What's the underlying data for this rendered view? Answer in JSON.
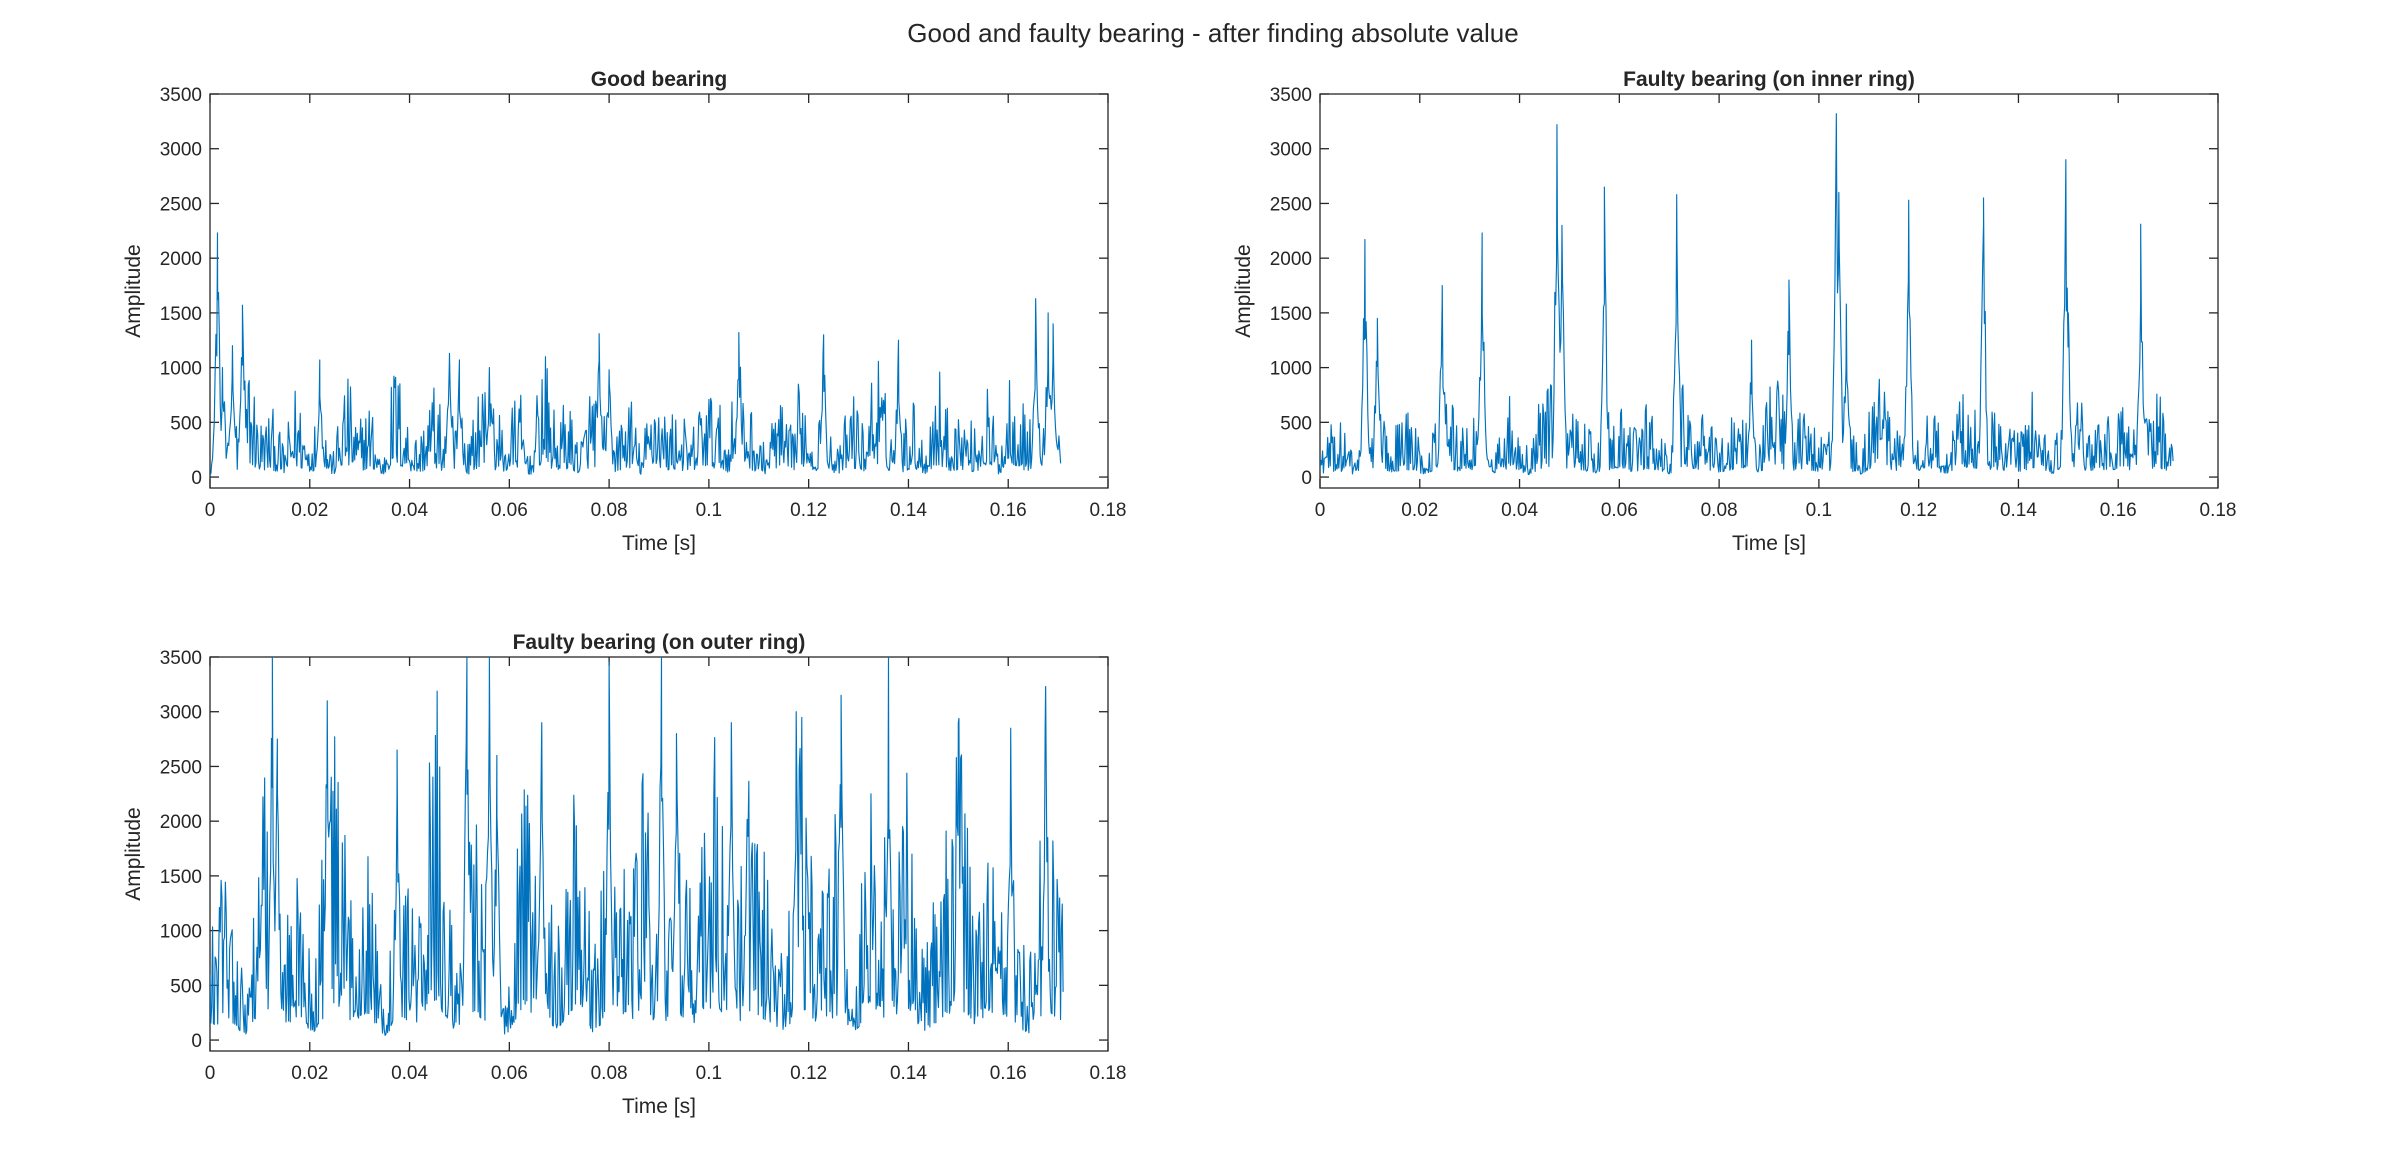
{
  "figure": {
    "title": "Good and faulty bearing - after finding absolute value"
  },
  "colors": {
    "series": "#0072BD",
    "axes": "#262626",
    "background": "#ffffff"
  },
  "chart_data": [
    {
      "type": "line",
      "title": "Good bearing",
      "xlabel": "Time [s]",
      "ylabel": "Amplitude",
      "xlim": [
        0,
        0.18
      ],
      "ylim": [
        -100,
        3500
      ],
      "xticks": [
        0,
        0.02,
        0.04,
        0.06,
        0.08,
        0.1,
        0.12,
        0.14,
        0.16,
        0.18
      ],
      "xtick_labels": [
        "0",
        "0.02",
        "0.04",
        "0.06",
        "0.08",
        "0.1",
        "0.12",
        "0.14",
        "0.16",
        "0.18"
      ],
      "yticks": [
        0,
        500,
        1000,
        1500,
        2000,
        2500,
        3000,
        3500
      ],
      "ytick_labels": [
        "0",
        "500",
        "1000",
        "1500",
        "2000",
        "2500",
        "3000",
        "3500"
      ],
      "grid": false,
      "series": [
        {
          "x_range": [
            0,
            0.1705
          ],
          "peaks": [
            [
              0.0015,
              2230
            ],
            [
              0.0025,
              1000
            ],
            [
              0.0045,
              1200
            ],
            [
              0.0065,
              1570
            ],
            [
              0.022,
              1070
            ],
            [
              0.048,
              1130
            ],
            [
              0.05,
              1070
            ],
            [
              0.056,
              1000
            ],
            [
              0.078,
              1310
            ],
            [
              0.08,
              980
            ],
            [
              0.106,
              1320
            ],
            [
              0.123,
              1300
            ],
            [
              0.138,
              1250
            ],
            [
              0.1655,
              1630
            ],
            [
              0.168,
              1500
            ],
            [
              0.169,
              1400
            ]
          ],
          "values": [
            170,
            540,
            260,
            920,
            380,
            440,
            200,
            620,
            300,
            480,
            150,
            700,
            350,
            520,
            90,
            810,
            410,
            250,
            660,
            330,
            560,
            180,
            730,
            460,
            290,
            610,
            120,
            850,
            370,
            500,
            220,
            680,
            430,
            310,
            590,
            140,
            770,
            390,
            470,
            240,
            640,
            520,
            300,
            820,
            410,
            190,
            560,
            280,
            700,
            360,
            480,
            150,
            610,
            330,
            880,
            420,
            260,
            540,
            200,
            750,
            380,
            470,
            310,
            620,
            170,
            830,
            450,
            290,
            580,
            360
          ]
        }
      ]
    },
    {
      "type": "line",
      "title": "Faulty bearing (on inner ring)",
      "xlabel": "Time [s]",
      "ylabel": "Amplitude",
      "xlim": [
        0,
        0.18
      ],
      "ylim": [
        -100,
        3500
      ],
      "xticks": [
        0,
        0.02,
        0.04,
        0.06,
        0.08,
        0.1,
        0.12,
        0.14,
        0.16,
        0.18
      ],
      "xtick_labels": [
        "0",
        "0.02",
        "0.04",
        "0.06",
        "0.08",
        "0.1",
        "0.12",
        "0.14",
        "0.16",
        "0.18"
      ],
      "yticks": [
        0,
        500,
        1000,
        1500,
        2000,
        2500,
        3000,
        3500
      ],
      "ytick_labels": [
        "0",
        "500",
        "1000",
        "1500",
        "2000",
        "2500",
        "3000",
        "3500"
      ],
      "grid": false,
      "series": [
        {
          "x_range": [
            0,
            0.171
          ],
          "peaks": [
            [
              0.009,
              2170
            ],
            [
              0.0115,
              1450
            ],
            [
              0.0245,
              1750
            ],
            [
              0.0325,
              2230
            ],
            [
              0.0475,
              3220
            ],
            [
              0.0485,
              2300
            ],
            [
              0.057,
              2650
            ],
            [
              0.0715,
              2580
            ],
            [
              0.0865,
              1250
            ],
            [
              0.094,
              1800
            ],
            [
              0.1035,
              3320
            ],
            [
              0.104,
              2600
            ],
            [
              0.1055,
              1580
            ],
            [
              0.118,
              2530
            ],
            [
              0.133,
              2550
            ],
            [
              0.1495,
              2900
            ],
            [
              0.15,
              1500
            ],
            [
              0.1645,
              2310
            ]
          ],
          "values": [
            210,
            380,
            150,
            520,
            290,
            440,
            180,
            610,
            330,
            470,
            250,
            560,
            140,
            690,
            360,
            420,
            210,
            580,
            310,
            500,
            170,
            640,
            380,
            280,
            530,
            200,
            720,
            350,
            460,
            230,
            590,
            150,
            670,
            400,
            300,
            510,
            190,
            630,
            340,
            450,
            260,
            570,
            120,
            700,
            390,
            320,
            540,
            210,
            610,
            280
          ]
        }
      ]
    },
    {
      "type": "line",
      "title": "Faulty bearing (on outer ring)",
      "xlabel": "Time [s]",
      "ylabel": "Amplitude",
      "xlim": [
        0,
        0.18
      ],
      "ylim": [
        -100,
        3500
      ],
      "xticks": [
        0,
        0.02,
        0.04,
        0.06,
        0.08,
        0.1,
        0.12,
        0.14,
        0.16,
        0.18
      ],
      "xtick_labels": [
        "0",
        "0.02",
        "0.04",
        "0.06",
        "0.08",
        "0.1",
        "0.12",
        "0.14",
        "0.16",
        "0.18"
      ],
      "yticks": [
        0,
        500,
        1000,
        1500,
        2000,
        2500,
        3000,
        3500
      ],
      "ytick_labels": [
        "0",
        "500",
        "1000",
        "1500",
        "2000",
        "2500",
        "3000",
        "3500"
      ],
      "grid": false,
      "series": [
        {
          "x_range": [
            0,
            0.171
          ],
          "peaks": [
            [
              0.0125,
              3500
            ],
            [
              0.0135,
              2750
            ],
            [
              0.0235,
              3100
            ],
            [
              0.0375,
              2650
            ],
            [
              0.0515,
              3500
            ],
            [
              0.056,
              3500
            ],
            [
              0.0575,
              2600
            ],
            [
              0.0665,
              2900
            ],
            [
              0.08,
              3450
            ],
            [
              0.0905,
              3500
            ],
            [
              0.0935,
              2800
            ],
            [
              0.1045,
              2900
            ],
            [
              0.1175,
              3000
            ],
            [
              0.1265,
              3150
            ],
            [
              0.136,
              3500
            ],
            [
              0.15,
              2900
            ],
            [
              0.1605,
              2850
            ],
            [
              0.1675,
              3230
            ]
          ],
          "values": [
            620,
            1400,
            250,
            1880,
            760,
            1150,
            420,
            2050,
            980,
            1620,
            180,
            1340,
            880,
            2240,
            540,
            1710,
            1030,
            300,
            1930,
            1240,
            700,
            2120,
            460,
            1560,
            1090,
            1820,
            350,
            1470,
            940,
            2280,
            610,
            1680,
            1180,
            420,
            1990,
            830,
            1510,
            270,
            2160,
            1060,
            1730,
            500,
            1290,
            2010,
            740,
            1600,
            1150,
            380,
            1890,
            1020
          ]
        }
      ]
    }
  ]
}
